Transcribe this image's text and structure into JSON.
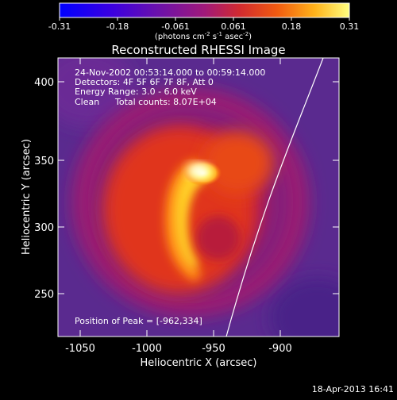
{
  "colorbar": {
    "tick_labels": [
      "-0.31",
      "-0.18",
      "-0.061",
      "0.061",
      "0.18",
      "0.31"
    ],
    "units_main": "(photons cm",
    "units_exp1": "-2",
    "units_mid1": " s",
    "units_exp2": "-1",
    "units_mid2": " asec",
    "units_exp3": "-2",
    "units_end": ")"
  },
  "title": "Reconstructed RHESSI Image",
  "annotations": {
    "time_range": "24-Nov-2002 00:53:14.000 to 00:59:14.000",
    "detectors": "Detectors: 4F 5F 6F 7F 8F, Att 0",
    "energy_range": "Energy Range: 3.0 - 6.0 keV",
    "clean_label": "Clean",
    "total_counts": "Total counts: 8.07E+04",
    "peak_position": "Position of Peak = [-962,334]"
  },
  "axes": {
    "xlabel": "Heliocentric X (arcsec)",
    "ylabel": "Heliocentric Y (arcsec)",
    "x_ticks": [
      "-1050",
      "-1000",
      "-950",
      "-900"
    ],
    "y_ticks": [
      "250",
      "300",
      "350",
      "400"
    ]
  },
  "footer": {
    "date_stamp": "18-Apr-2013 16:41"
  },
  "colors": {
    "background": "#000000",
    "limb_line": "#ffffff"
  }
}
